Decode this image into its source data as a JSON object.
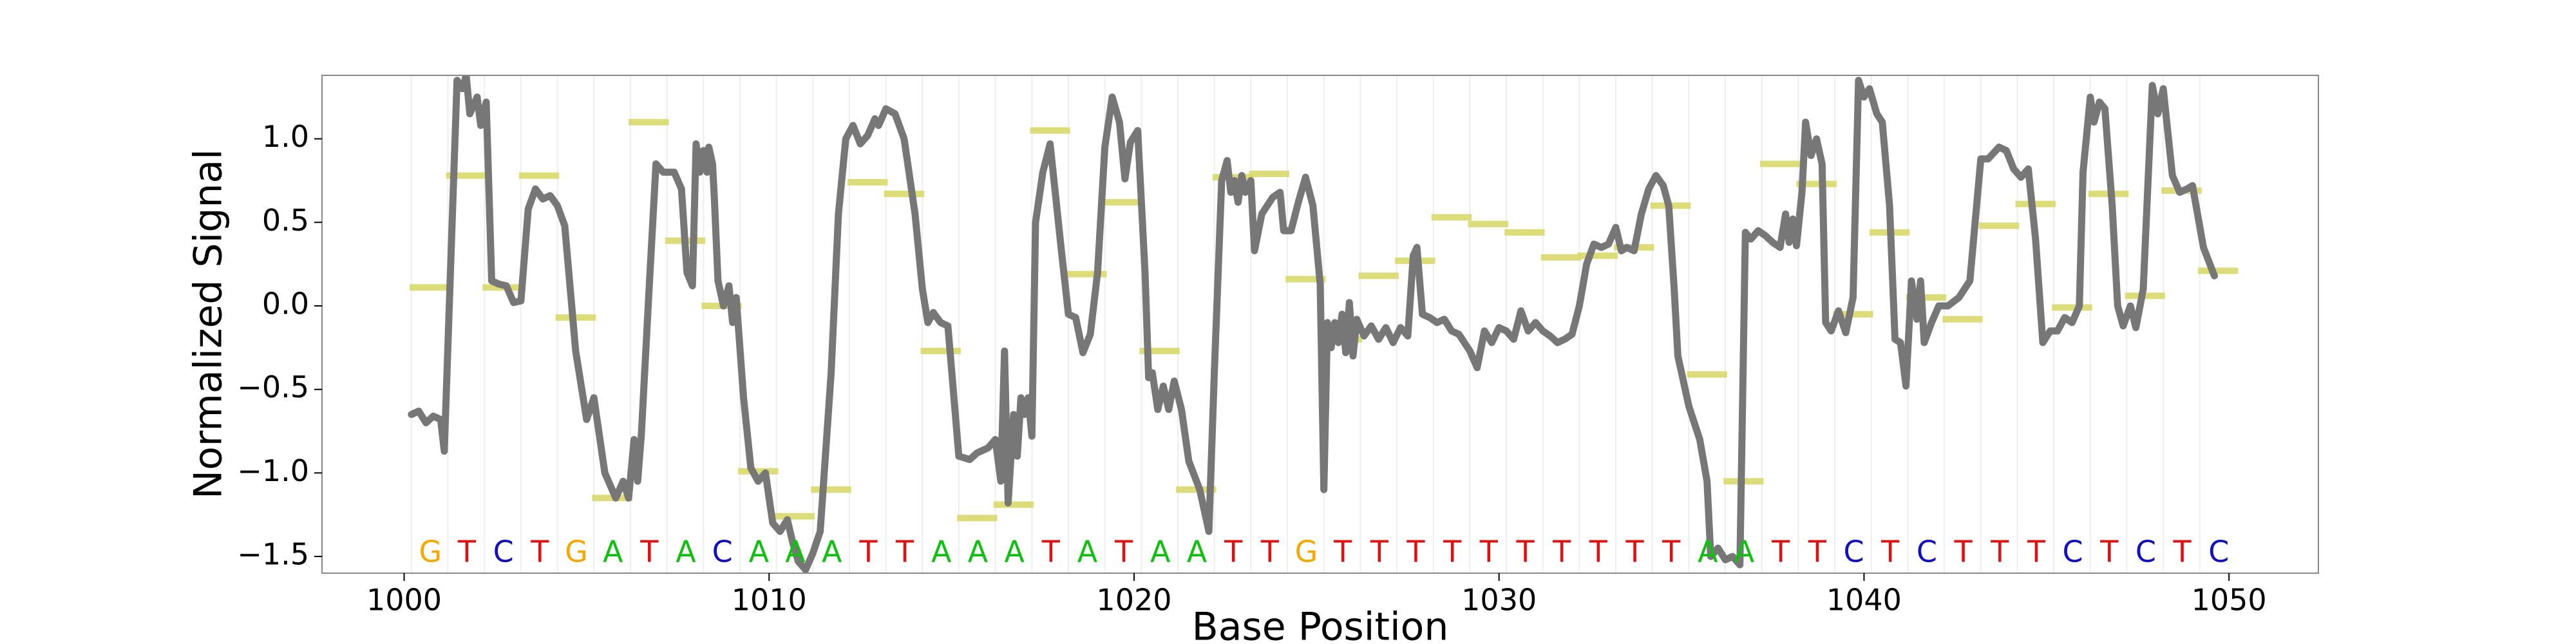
{
  "chart_data": {
    "type": "line",
    "xlabel": "Base Position",
    "ylabel": "Normalized Signal",
    "xlim": [
      997.75,
      1052.45
    ],
    "ylim": [
      -1.6,
      1.38
    ],
    "xticks": [
      1000,
      1010,
      1020,
      1030,
      1040,
      1050
    ],
    "yticks": [
      {
        "value": -1.5,
        "label": "−1.5"
      },
      {
        "value": -1,
        "label": "−1.0"
      },
      {
        "value": -0.5,
        "label": "−0.5"
      },
      {
        "value": 0,
        "label": "0.0"
      },
      0.5,
      {
        "value": 1,
        "label": "1.0"
      }
    ],
    "line_color": "#777777",
    "segment_color": "#d8d86a",
    "base_colors": {
      "G": "#f5a800",
      "T": "#e01010",
      "C": "#1010c0",
      "A": "#10c010"
    },
    "bases": [
      "G",
      "T",
      "C",
      "T",
      "G",
      "A",
      "T",
      "A",
      "C",
      "A",
      "A",
      "A",
      "T",
      "T",
      "A",
      "A",
      "A",
      "T",
      "A",
      "T",
      "A",
      "A",
      "T",
      "T",
      "G",
      "T",
      "T",
      "T",
      "T",
      "T",
      "T",
      "T",
      "T",
      "T",
      "T",
      "A",
      "A",
      "T",
      "T",
      "C",
      "T",
      "C",
      "T",
      "T",
      "T",
      "C",
      "T",
      "C",
      "T",
      "C"
    ],
    "base_means": [
      0.11,
      0.78,
      0.11,
      0.78,
      -0.07,
      -1.15,
      1.1,
      0.39,
      0.0,
      -0.99,
      -1.26,
      -1.1,
      0.74,
      0.67,
      -0.27,
      -1.27,
      -1.19,
      1.05,
      0.19,
      0.62,
      -0.27,
      -1.1,
      0.77,
      0.79,
      0.16,
      -0.2,
      0.18,
      0.27,
      0.53,
      0.49,
      0.44,
      0.29,
      0.3,
      0.35,
      0.6,
      -0.41,
      -1.05,
      0.85,
      0.73,
      -0.05,
      0.44,
      0.05,
      -0.08,
      0.48,
      0.61,
      -0.01,
      0.67,
      0.06,
      0.69,
      0.21
    ],
    "signal": {
      "x": [
        1000.2,
        1000.4,
        1000.6,
        1000.8,
        1001.0,
        1001.1,
        1001.3,
        1001.45,
        1001.6,
        1001.7,
        1001.8,
        1002.0,
        1002.1,
        1002.25,
        1002.4,
        1002.6,
        1002.8,
        1003.0,
        1003.2,
        1003.4,
        1003.6,
        1003.8,
        1004.0,
        1004.2,
        1004.4,
        1004.7,
        1005.0,
        1005.2,
        1005.5,
        1005.8,
        1006.0,
        1006.15,
        1006.3,
        1006.4,
        1006.5,
        1006.7,
        1006.9,
        1007.1,
        1007.4,
        1007.6,
        1007.75,
        1007.9,
        1008.0,
        1008.1,
        1008.2,
        1008.3,
        1008.35,
        1008.45,
        1008.5,
        1008.6,
        1008.75,
        1008.9,
        1009.0,
        1009.1,
        1009.3,
        1009.5,
        1009.7,
        1009.9,
        1010.1,
        1010.3,
        1010.5,
        1010.65,
        1010.8,
        1011.0,
        1011.2,
        1011.4,
        1011.7,
        1011.9,
        1012.1,
        1012.3,
        1012.5,
        1012.7,
        1012.9,
        1013.0,
        1013.2,
        1013.45,
        1013.7,
        1014.0,
        1014.2,
        1014.35,
        1014.5,
        1014.7,
        1014.9,
        1015.2,
        1015.5,
        1015.7,
        1016.0,
        1016.2,
        1016.35,
        1016.45,
        1016.55,
        1016.7,
        1016.8,
        1016.9,
        1017.0,
        1017.1,
        1017.2,
        1017.3,
        1017.5,
        1017.7,
        1018.0,
        1018.2,
        1018.4,
        1018.6,
        1018.8,
        1019.0,
        1019.2,
        1019.4,
        1019.6,
        1019.75,
        1019.9,
        1020.1,
        1020.3,
        1020.4,
        1020.5,
        1020.65,
        1020.8,
        1020.95,
        1021.1,
        1021.3,
        1021.5,
        1021.8,
        1022.05,
        1022.2,
        1022.4,
        1022.55,
        1022.65,
        1022.75,
        1022.85,
        1022.95,
        1023.05,
        1023.2,
        1023.3,
        1023.5,
        1023.8,
        1024.0,
        1024.1,
        1024.3,
        1024.5,
        1024.7,
        1024.9,
        1025.1,
        1025.2,
        1025.3,
        1025.4,
        1025.5,
        1025.6,
        1025.7,
        1025.8,
        1025.9,
        1026.0,
        1026.1,
        1026.3,
        1026.5,
        1026.7,
        1026.9,
        1027.1,
        1027.3,
        1027.5,
        1027.65,
        1027.75,
        1027.9,
        1028.1,
        1028.3,
        1028.5,
        1028.7,
        1028.9,
        1029.2,
        1029.4,
        1029.6,
        1029.8,
        1030.0,
        1030.2,
        1030.4,
        1030.6,
        1030.8,
        1031.0,
        1031.2,
        1031.4,
        1031.6,
        1031.8,
        1032.0,
        1032.2,
        1032.4,
        1032.6,
        1032.8,
        1033.0,
        1033.2,
        1033.35,
        1033.5,
        1033.7,
        1033.9,
        1034.1,
        1034.3,
        1034.5,
        1034.65,
        1034.8,
        1034.9,
        1035.2,
        1035.5,
        1035.7,
        1035.8,
        1036.0,
        1036.2,
        1036.4,
        1036.6,
        1036.75,
        1036.9,
        1037.1,
        1037.3,
        1037.5,
        1037.7,
        1037.85,
        1037.95,
        1038.05,
        1038.15,
        1038.3,
        1038.4,
        1038.55,
        1038.7,
        1038.85,
        1038.95,
        1039.1,
        1039.3,
        1039.5,
        1039.7,
        1039.85,
        1040.0,
        1040.15,
        1040.35,
        1040.5,
        1040.7,
        1040.85,
        1041.0,
        1041.15,
        1041.3,
        1041.45,
        1041.55,
        1041.65,
        1041.85,
        1042.05,
        1042.3,
        1042.6,
        1042.9,
        1043.2,
        1043.4,
        1043.7,
        1043.9,
        1044.1,
        1044.3,
        1044.5,
        1044.7,
        1044.9,
        1045.1,
        1045.3,
        1045.5,
        1045.7,
        1045.9,
        1046.0,
        1046.2,
        1046.3,
        1046.45,
        1046.6,
        1046.8,
        1046.95,
        1047.1,
        1047.3,
        1047.45,
        1047.65,
        1047.9,
        1048.05,
        1048.2,
        1048.45,
        1048.65,
        1048.85,
        1049.0,
        1049.3,
        1049.6
      ],
      "y": [
        -0.65,
        -0.63,
        -0.7,
        -0.66,
        -0.68,
        -0.87,
        0.4,
        1.35,
        1.3,
        1.38,
        1.15,
        1.25,
        1.08,
        1.22,
        0.15,
        0.13,
        0.12,
        0.02,
        0.03,
        0.58,
        0.7,
        0.64,
        0.66,
        0.6,
        0.48,
        -0.27,
        -0.68,
        -0.55,
        -1.0,
        -1.15,
        -1.05,
        -1.15,
        -0.8,
        -1.05,
        -0.77,
        0.05,
        0.85,
        0.8,
        0.8,
        0.7,
        0.2,
        0.12,
        0.97,
        0.8,
        0.93,
        0.8,
        0.95,
        0.85,
        0.65,
        0.15,
        0.0,
        0.12,
        -0.1,
        0.05,
        -0.55,
        -0.97,
        -1.05,
        -1.0,
        -1.3,
        -1.35,
        -1.28,
        -1.42,
        -1.53,
        -1.58,
        -1.48,
        -1.35,
        -0.4,
        0.55,
        1.0,
        1.08,
        0.97,
        1.02,
        1.12,
        1.08,
        1.18,
        1.15,
        1.0,
        0.55,
        0.1,
        -0.1,
        -0.04,
        -0.1,
        -0.12,
        -0.9,
        -0.92,
        -0.88,
        -0.85,
        -0.8,
        -1.05,
        -0.27,
        -1.18,
        -0.65,
        -0.9,
        -0.55,
        -0.65,
        -0.55,
        -0.78,
        0.5,
        0.8,
        0.97,
        0.35,
        -0.05,
        -0.07,
        -0.28,
        -0.17,
        0.2,
        0.95,
        1.25,
        1.1,
        0.76,
        0.98,
        1.05,
        0.2,
        -0.43,
        -0.4,
        -0.62,
        -0.48,
        -0.62,
        -0.45,
        -0.62,
        -0.93,
        -1.1,
        -1.35,
        -0.4,
        0.75,
        0.87,
        0.68,
        0.75,
        0.62,
        0.78,
        0.68,
        0.75,
        0.33,
        0.55,
        0.65,
        0.68,
        0.45,
        0.45,
        0.62,
        0.77,
        0.6,
        0.13,
        -1.1,
        -0.1,
        -0.25,
        -0.1,
        -0.22,
        -0.05,
        -0.28,
        0.02,
        -0.3,
        -0.08,
        -0.18,
        -0.12,
        -0.2,
        -0.13,
        -0.22,
        -0.13,
        -0.18,
        0.3,
        0.35,
        -0.05,
        -0.07,
        -0.1,
        -0.08,
        -0.15,
        -0.17,
        -0.27,
        -0.37,
        -0.15,
        -0.22,
        -0.13,
        -0.15,
        -0.2,
        -0.03,
        -0.15,
        -0.1,
        -0.15,
        -0.18,
        -0.22,
        -0.2,
        -0.17,
        0.0,
        0.25,
        0.37,
        0.35,
        0.37,
        0.47,
        0.33,
        0.35,
        0.33,
        0.55,
        0.7,
        0.78,
        0.72,
        0.6,
        0.1,
        -0.3,
        -0.6,
        -0.8,
        -1.05,
        -1.5,
        -1.45,
        -1.52,
        -1.5,
        -1.55,
        0.44,
        0.4,
        0.45,
        0.42,
        0.38,
        0.35,
        0.55,
        0.38,
        0.52,
        0.36,
        0.68,
        1.1,
        0.9,
        1.0,
        0.85,
        -0.1,
        -0.15,
        -0.03,
        -0.16,
        0.05,
        1.35,
        1.25,
        1.3,
        1.15,
        1.1,
        0.6,
        -0.2,
        -0.22,
        -0.48,
        0.15,
        -0.08,
        0.15,
        -0.22,
        -0.1,
        0.0,
        0.0,
        0.05,
        0.15,
        0.88,
        0.88,
        0.95,
        0.93,
        0.82,
        0.77,
        0.82,
        0.4,
        -0.22,
        -0.15,
        -0.15,
        -0.07,
        -0.1,
        0.0,
        0.8,
        1.25,
        1.1,
        1.22,
        1.18,
        0.6,
        0.0,
        -0.12,
        0.0,
        -0.13,
        0.1,
        1.32,
        1.15,
        1.3,
        0.78,
        0.68,
        0.7,
        0.72,
        0.35,
        0.18
      ]
    }
  }
}
